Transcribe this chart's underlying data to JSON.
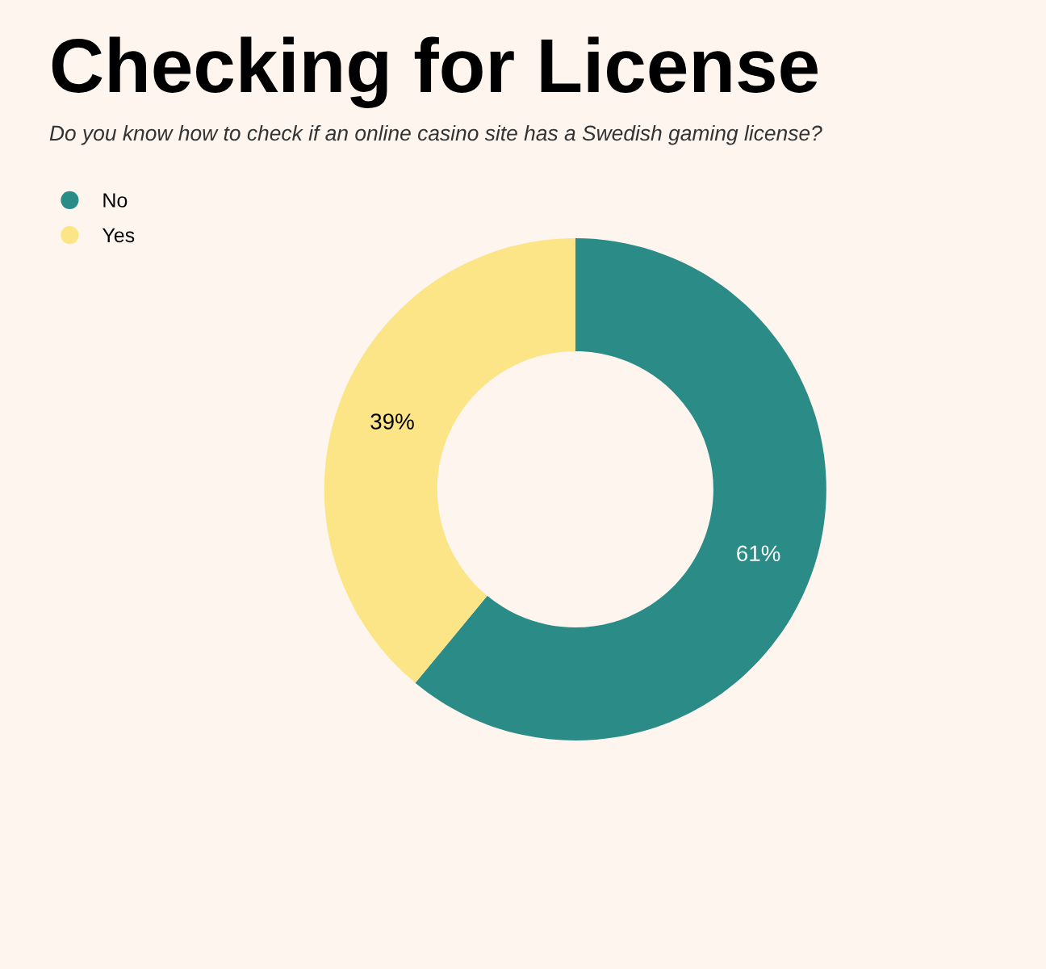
{
  "chart_data": {
    "type": "donut",
    "title": "Checking for License",
    "subtitle": "Do you know how to check if an online casino site has a Swedish gaming license?",
    "categories": [
      "No",
      "Yes"
    ],
    "values": [
      61,
      39
    ],
    "colors": [
      "#2a8b87",
      "#fce586"
    ],
    "value_labels": [
      "61%",
      "39%"
    ],
    "legend": "top left"
  }
}
